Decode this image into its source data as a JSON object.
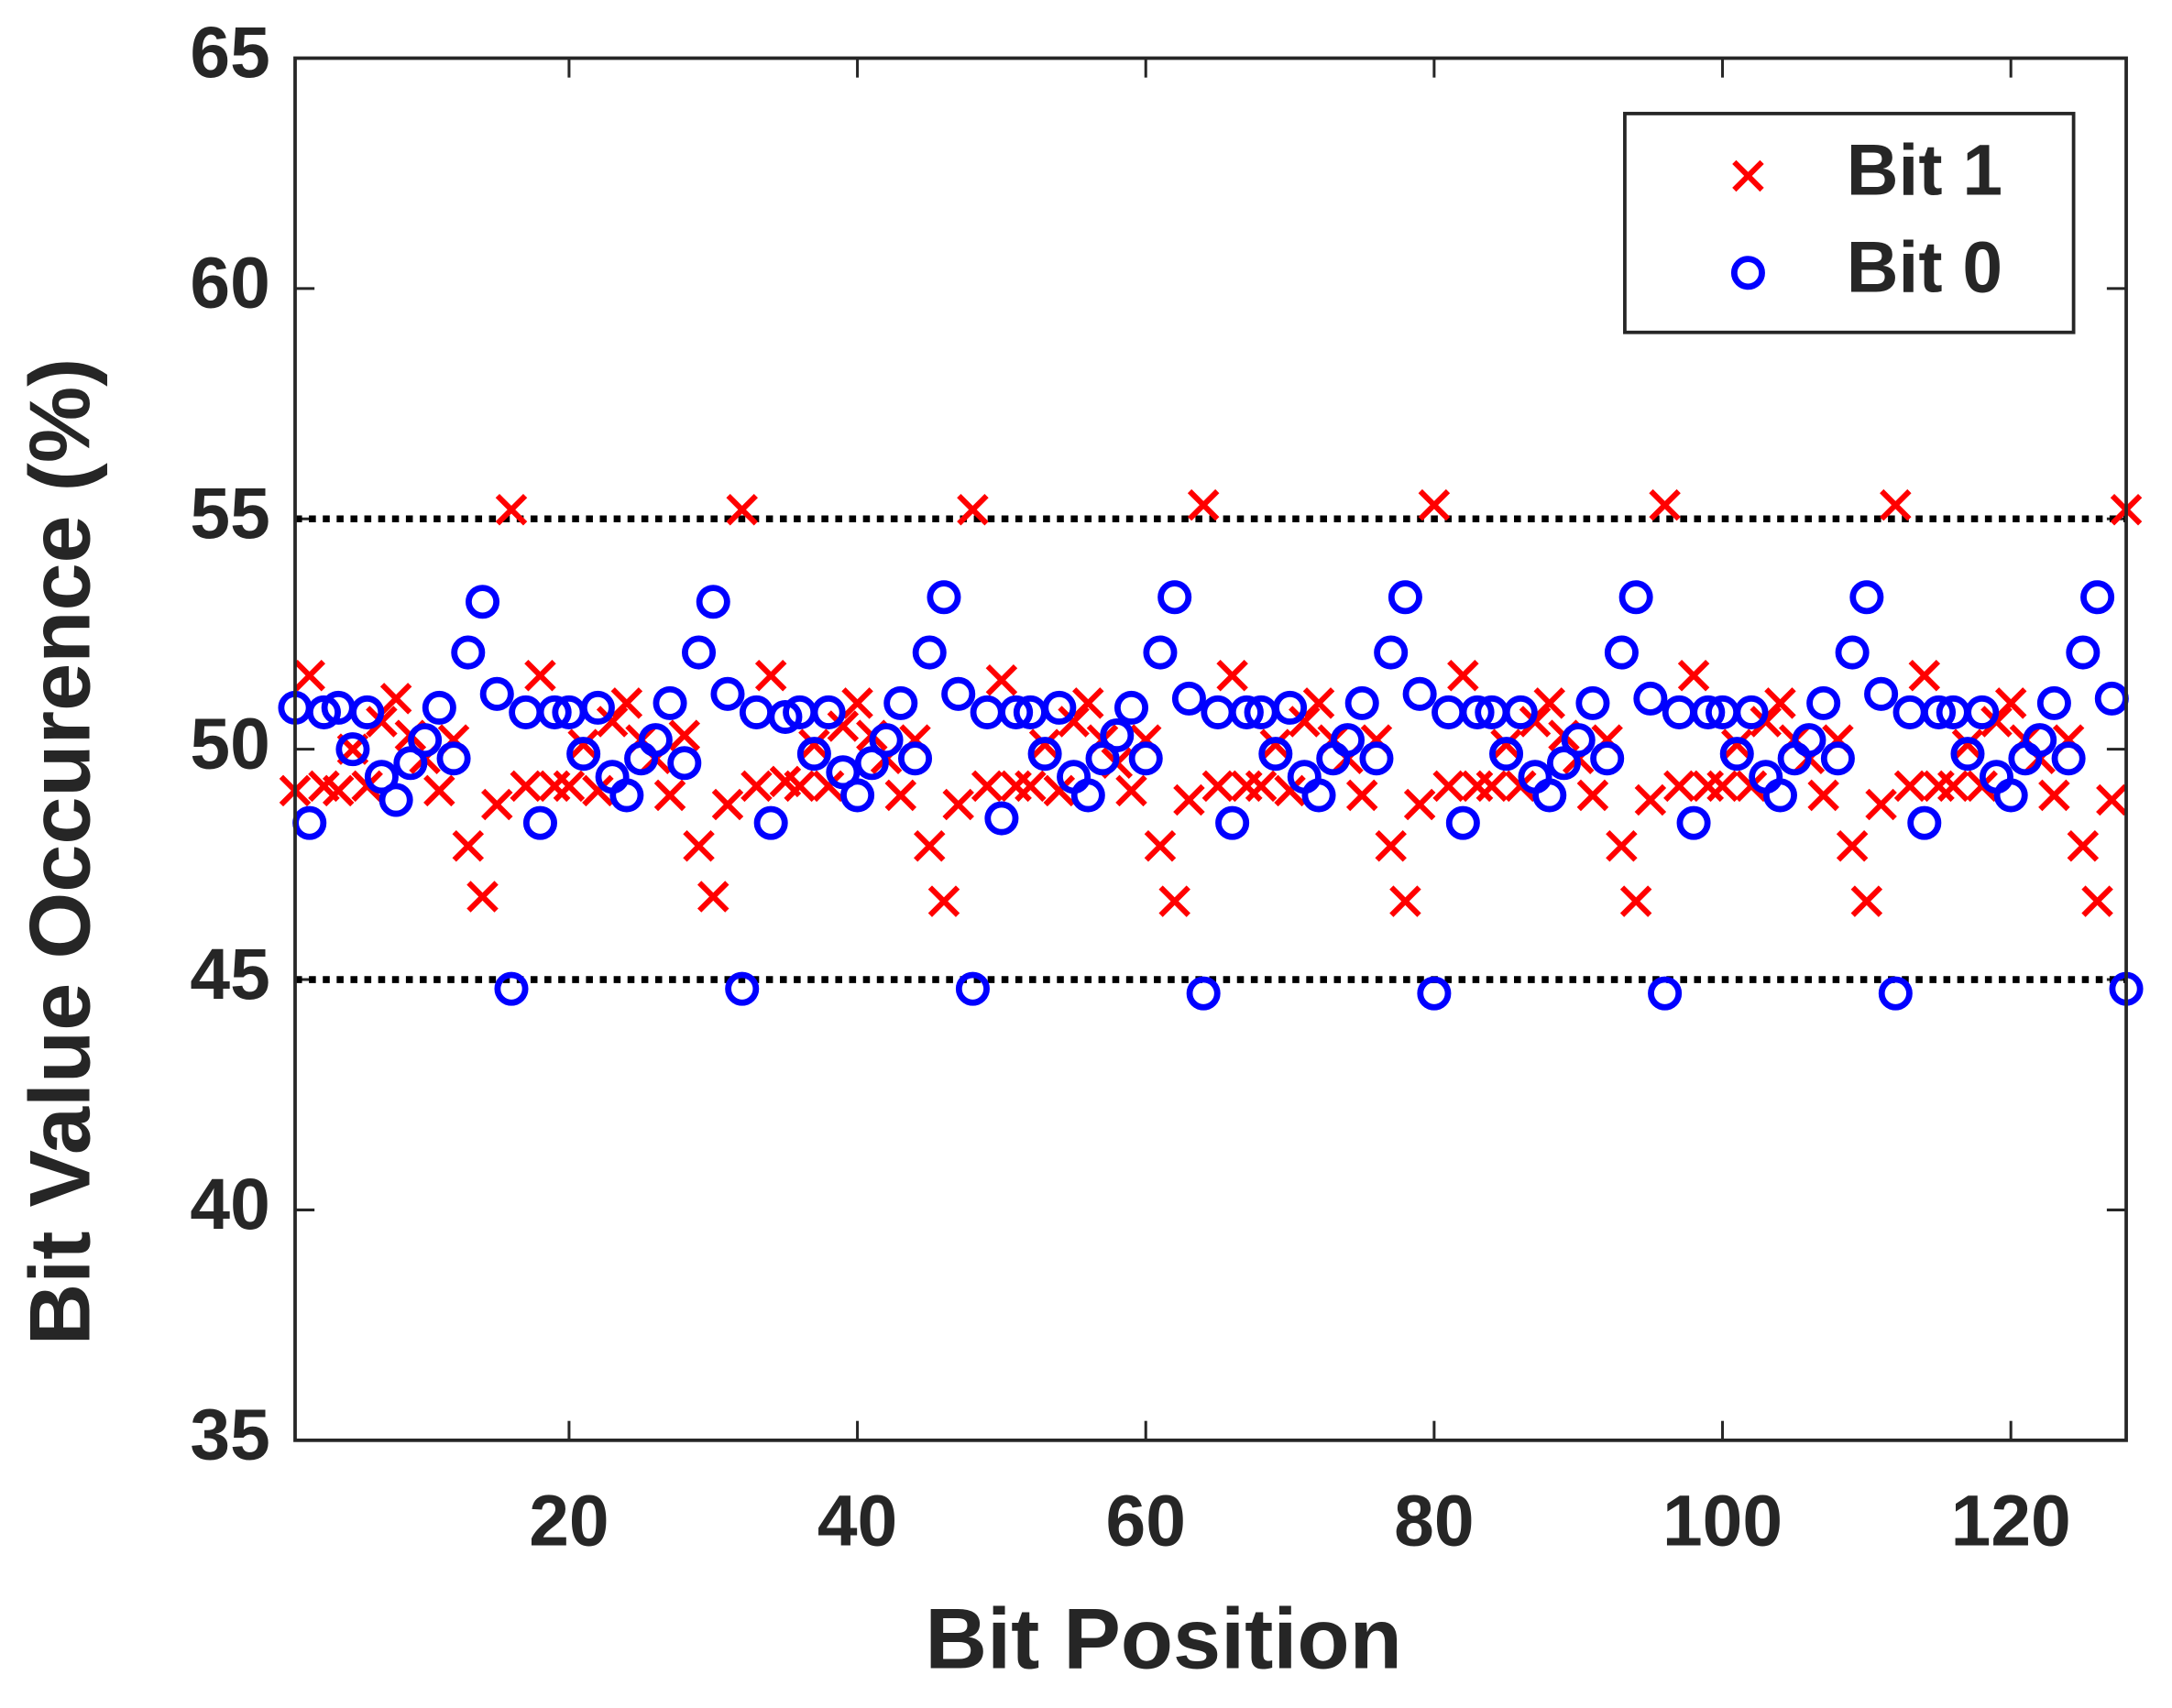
{
  "chart_data": {
    "type": "scatter",
    "xlabel": "Bit Position",
    "ylabel": "Bit Value Occurence (%)",
    "xlim": [
      1,
      128
    ],
    "ylim": [
      35,
      65
    ],
    "xticks": [
      20,
      40,
      60,
      80,
      100,
      120
    ],
    "yticks": [
      35,
      40,
      45,
      50,
      55,
      60,
      65
    ],
    "reference_lines": [
      55,
      45
    ],
    "legend": "upper right",
    "x": [
      1,
      2,
      3,
      4,
      5,
      6,
      7,
      8,
      9,
      10,
      11,
      12,
      13,
      14,
      15,
      16,
      17,
      18,
      19,
      20,
      21,
      22,
      23,
      24,
      25,
      26,
      27,
      28,
      29,
      30,
      31,
      32,
      33,
      34,
      35,
      36,
      37,
      38,
      39,
      40,
      41,
      42,
      43,
      44,
      45,
      46,
      47,
      48,
      49,
      50,
      51,
      52,
      53,
      54,
      55,
      56,
      57,
      58,
      59,
      60,
      61,
      62,
      63,
      64,
      65,
      66,
      67,
      68,
      69,
      70,
      71,
      72,
      73,
      74,
      75,
      76,
      77,
      78,
      79,
      80,
      81,
      82,
      83,
      84,
      85,
      86,
      87,
      88,
      89,
      90,
      91,
      92,
      93,
      94,
      95,
      96,
      97,
      98,
      99,
      100,
      101,
      102,
      103,
      104,
      105,
      106,
      107,
      108,
      109,
      110,
      111,
      112,
      113,
      114,
      115,
      116,
      117,
      118,
      119,
      120,
      121,
      122,
      123,
      124,
      125,
      126,
      127,
      128
    ],
    "series": [
      {
        "name": "Bit 1",
        "color": "#ff0000",
        "marker": "x",
        "values": [
          49.1,
          51.6,
          49.2,
          49.1,
          50.0,
          49.2,
          50.6,
          51.1,
          50.3,
          49.8,
          49.1,
          50.2,
          47.9,
          46.8,
          48.8,
          55.2,
          49.2,
          51.6,
          49.2,
          49.2,
          50.1,
          49.1,
          50.6,
          51.0,
          50.2,
          49.8,
          49.0,
          50.3,
          47.9,
          46.8,
          48.8,
          55.2,
          49.2,
          51.6,
          49.3,
          49.2,
          50.1,
          49.2,
          50.5,
          51.0,
          50.3,
          49.8,
          49.0,
          50.2,
          47.9,
          46.7,
          48.8,
          55.2,
          49.2,
          51.5,
          49.2,
          49.2,
          50.1,
          49.1,
          50.6,
          51.0,
          50.2,
          49.7,
          49.1,
          50.2,
          47.9,
          46.7,
          48.9,
          55.3,
          49.2,
          51.6,
          49.2,
          49.2,
          50.1,
          49.1,
          50.6,
          51.0,
          50.2,
          49.8,
          49.0,
          50.2,
          47.9,
          46.7,
          48.8,
          55.3,
          49.2,
          51.6,
          49.2,
          49.2,
          50.1,
          49.2,
          50.6,
          51.0,
          50.3,
          49.8,
          49.0,
          50.2,
          47.9,
          46.7,
          48.9,
          55.3,
          49.2,
          51.6,
          49.2,
          49.2,
          50.1,
          49.2,
          50.6,
          51.0,
          50.2,
          49.8,
          49.0,
          50.2,
          47.9,
          46.7,
          48.8,
          55.3,
          49.2,
          51.6,
          49.2,
          49.2,
          50.1,
          49.2,
          50.6,
          51.0,
          50.2,
          49.8,
          49.0,
          50.2,
          47.9,
          46.7,
          48.9,
          55.2
        ]
      },
      {
        "name": "Bit 0",
        "color": "#0000ff",
        "marker": "o",
        "values": [
          50.9,
          48.4,
          50.8,
          50.9,
          50.0,
          50.8,
          49.4,
          48.9,
          49.7,
          50.2,
          50.9,
          49.8,
          52.1,
          53.2,
          51.2,
          44.8,
          50.8,
          48.4,
          50.8,
          50.8,
          49.9,
          50.9,
          49.4,
          49.0,
          49.8,
          50.2,
          51.0,
          49.7,
          52.1,
          53.2,
          51.2,
          44.8,
          50.8,
          48.4,
          50.7,
          50.8,
          49.9,
          50.8,
          49.5,
          49.0,
          49.7,
          50.2,
          51.0,
          49.8,
          52.1,
          53.3,
          51.2,
          44.8,
          50.8,
          48.5,
          50.8,
          50.8,
          49.9,
          50.9,
          49.4,
          49.0,
          49.8,
          50.3,
          50.9,
          49.8,
          52.1,
          53.3,
          51.1,
          44.7,
          50.8,
          48.4,
          50.8,
          50.8,
          49.9,
          50.9,
          49.4,
          49.0,
          49.8,
          50.2,
          51.0,
          49.8,
          52.1,
          53.3,
          51.2,
          44.7,
          50.8,
          48.4,
          50.8,
          50.8,
          49.9,
          50.8,
          49.4,
          49.0,
          49.7,
          50.2,
          51.0,
          49.8,
          52.1,
          53.3,
          51.1,
          44.7,
          50.8,
          48.4,
          50.8,
          50.8,
          49.9,
          50.8,
          49.4,
          49.0,
          49.8,
          50.2,
          51.0,
          49.8,
          52.1,
          53.3,
          51.2,
          44.7,
          50.8,
          48.4,
          50.8,
          50.8,
          49.9,
          50.8,
          49.4,
          49.0,
          49.8,
          50.2,
          51.0,
          49.8,
          52.1,
          53.3,
          51.1,
          44.8
        ]
      }
    ]
  }
}
